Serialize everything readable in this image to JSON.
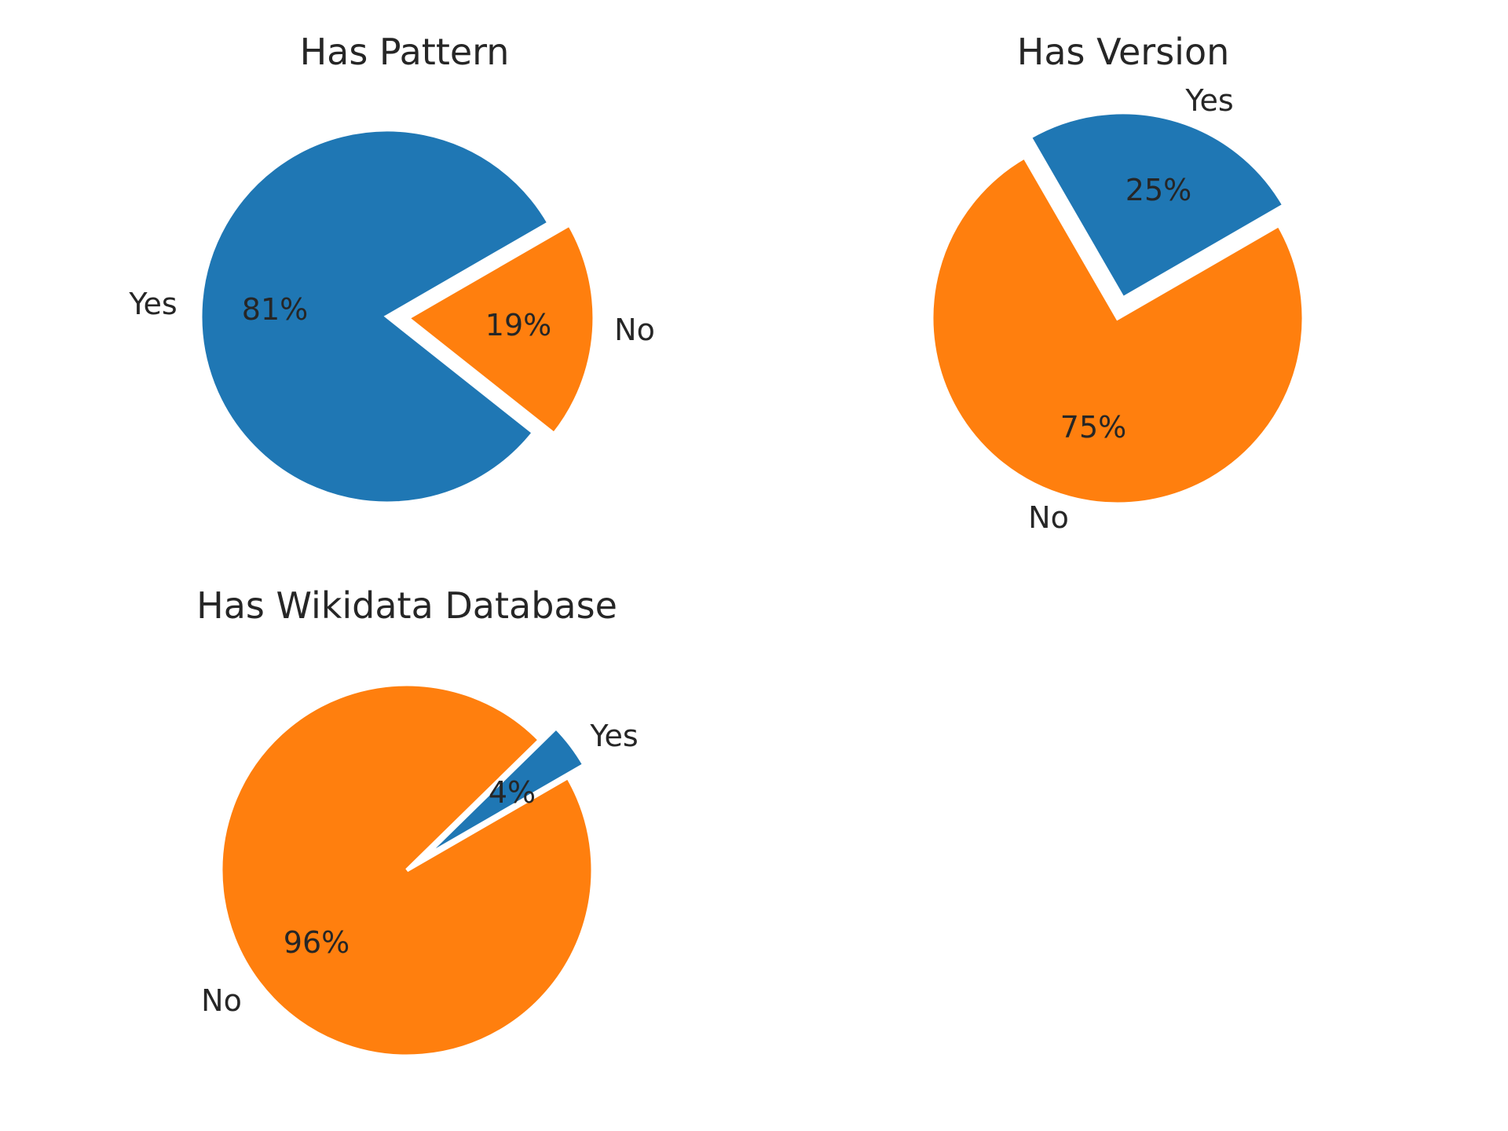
{
  "colors": {
    "yes": "#1f77b4",
    "no": "#ff7f0e",
    "explode_gap": "#ffffff"
  },
  "chart_data": [
    {
      "type": "pie",
      "title": "Has Pattern",
      "categories": [
        "Yes",
        "No"
      ],
      "values": [
        81,
        19
      ],
      "percent_labels": [
        "81%",
        "19%"
      ],
      "exploded": [
        "No"
      ]
    },
    {
      "type": "pie",
      "title": "Has Version",
      "categories": [
        "Yes",
        "No"
      ],
      "values": [
        25,
        75
      ],
      "percent_labels": [
        "25%",
        "75%"
      ],
      "exploded": [
        "Yes"
      ]
    },
    {
      "type": "pie",
      "title": "Has Wikidata Database",
      "categories": [
        "Yes",
        "No"
      ],
      "values": [
        4,
        96
      ],
      "percent_labels": [
        "4%",
        "96%"
      ],
      "exploded": [
        "Yes"
      ]
    }
  ]
}
